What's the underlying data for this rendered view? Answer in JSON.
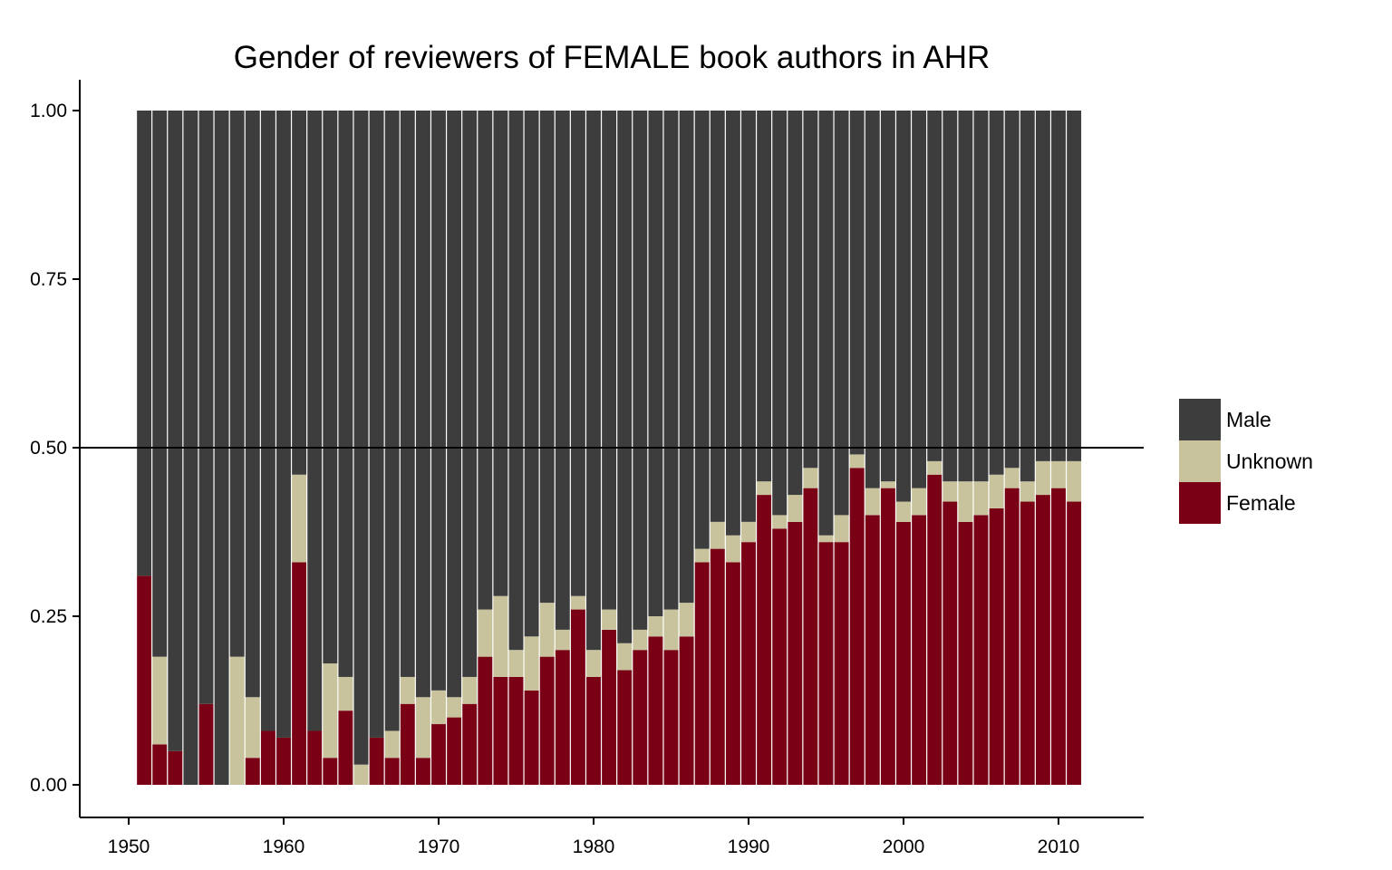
{
  "chart_data": {
    "type": "bar",
    "stacked": true,
    "normalized": true,
    "title": "Gender of reviewers of FEMALE book authors in AHR",
    "xlabel": "",
    "ylabel": "",
    "ylim": [
      0,
      1
    ],
    "xlim": [
      1947,
      2015
    ],
    "y_ticks": [
      "0.00",
      "0.25",
      "0.50",
      "0.75",
      "1.00"
    ],
    "x_ticks": [
      "1950",
      "1960",
      "1970",
      "1980",
      "1990",
      "2000",
      "2010"
    ],
    "reference_line": 0.5,
    "grid": false,
    "legend_position": "right",
    "legend": [
      "Male",
      "Unknown",
      "Female"
    ],
    "colors": {
      "Male": "#3d3d3d",
      "Unknown": "#c8c39c",
      "Female": "#7a0016",
      "axis": "#000000",
      "background": "#ffffff"
    },
    "years": [
      1951,
      1952,
      1953,
      1954,
      1955,
      1956,
      1957,
      1958,
      1959,
      1960,
      1961,
      1962,
      1963,
      1964,
      1965,
      1966,
      1967,
      1968,
      1969,
      1970,
      1971,
      1972,
      1973,
      1974,
      1975,
      1976,
      1977,
      1978,
      1979,
      1980,
      1981,
      1982,
      1983,
      1984,
      1985,
      1986,
      1987,
      1988,
      1989,
      1990,
      1991,
      1992,
      1993,
      1994,
      1995,
      1996,
      1997,
      1998,
      1999,
      2000,
      2001,
      2002,
      2003,
      2004,
      2005,
      2006,
      2007,
      2008,
      2009,
      2010,
      2011
    ],
    "series": [
      {
        "name": "Female",
        "values": [
          0.31,
          0.06,
          0.05,
          0.0,
          0.12,
          0.0,
          0.0,
          0.04,
          0.08,
          0.07,
          0.33,
          0.08,
          0.04,
          0.11,
          0.0,
          0.07,
          0.04,
          0.12,
          0.04,
          0.09,
          0.1,
          0.12,
          0.19,
          0.16,
          0.16,
          0.14,
          0.19,
          0.2,
          0.26,
          0.16,
          0.23,
          0.17,
          0.2,
          0.22,
          0.2,
          0.22,
          0.33,
          0.35,
          0.33,
          0.36,
          0.43,
          0.38,
          0.39,
          0.44,
          0.36,
          0.36,
          0.47,
          0.4,
          0.44,
          0.39,
          0.4,
          0.46,
          0.42,
          0.39,
          0.4,
          0.41,
          0.44,
          0.42,
          0.43,
          0.44,
          0.42
        ]
      },
      {
        "name": "Unknown",
        "values": [
          0.0,
          0.13,
          0.0,
          0.0,
          0.0,
          0.0,
          0.19,
          0.09,
          0.0,
          0.0,
          0.13,
          0.0,
          0.14,
          0.05,
          0.03,
          0.0,
          0.04,
          0.04,
          0.09,
          0.05,
          0.03,
          0.04,
          0.07,
          0.12,
          0.04,
          0.08,
          0.08,
          0.03,
          0.02,
          0.04,
          0.03,
          0.04,
          0.03,
          0.03,
          0.06,
          0.05,
          0.02,
          0.04,
          0.04,
          0.03,
          0.02,
          0.02,
          0.04,
          0.03,
          0.01,
          0.04,
          0.02,
          0.04,
          0.01,
          0.03,
          0.04,
          0.02,
          0.03,
          0.06,
          0.05,
          0.05,
          0.03,
          0.03,
          0.05,
          0.04,
          0.06
        ]
      },
      {
        "name": "Male",
        "values": [
          0.69,
          0.81,
          0.95,
          1.0,
          0.88,
          1.0,
          0.81,
          0.87,
          0.92,
          0.93,
          0.54,
          0.92,
          0.82,
          0.84,
          0.97,
          0.93,
          0.92,
          0.84,
          0.87,
          0.86,
          0.87,
          0.84,
          0.74,
          0.72,
          0.8,
          0.78,
          0.73,
          0.77,
          0.72,
          0.8,
          0.74,
          0.79,
          0.77,
          0.75,
          0.74,
          0.73,
          0.65,
          0.61,
          0.63,
          0.61,
          0.55,
          0.6,
          0.57,
          0.53,
          0.63,
          0.6,
          0.51,
          0.56,
          0.55,
          0.58,
          0.56,
          0.52,
          0.55,
          0.55,
          0.55,
          0.54,
          0.53,
          0.55,
          0.52,
          0.52,
          0.52
        ]
      }
    ]
  }
}
